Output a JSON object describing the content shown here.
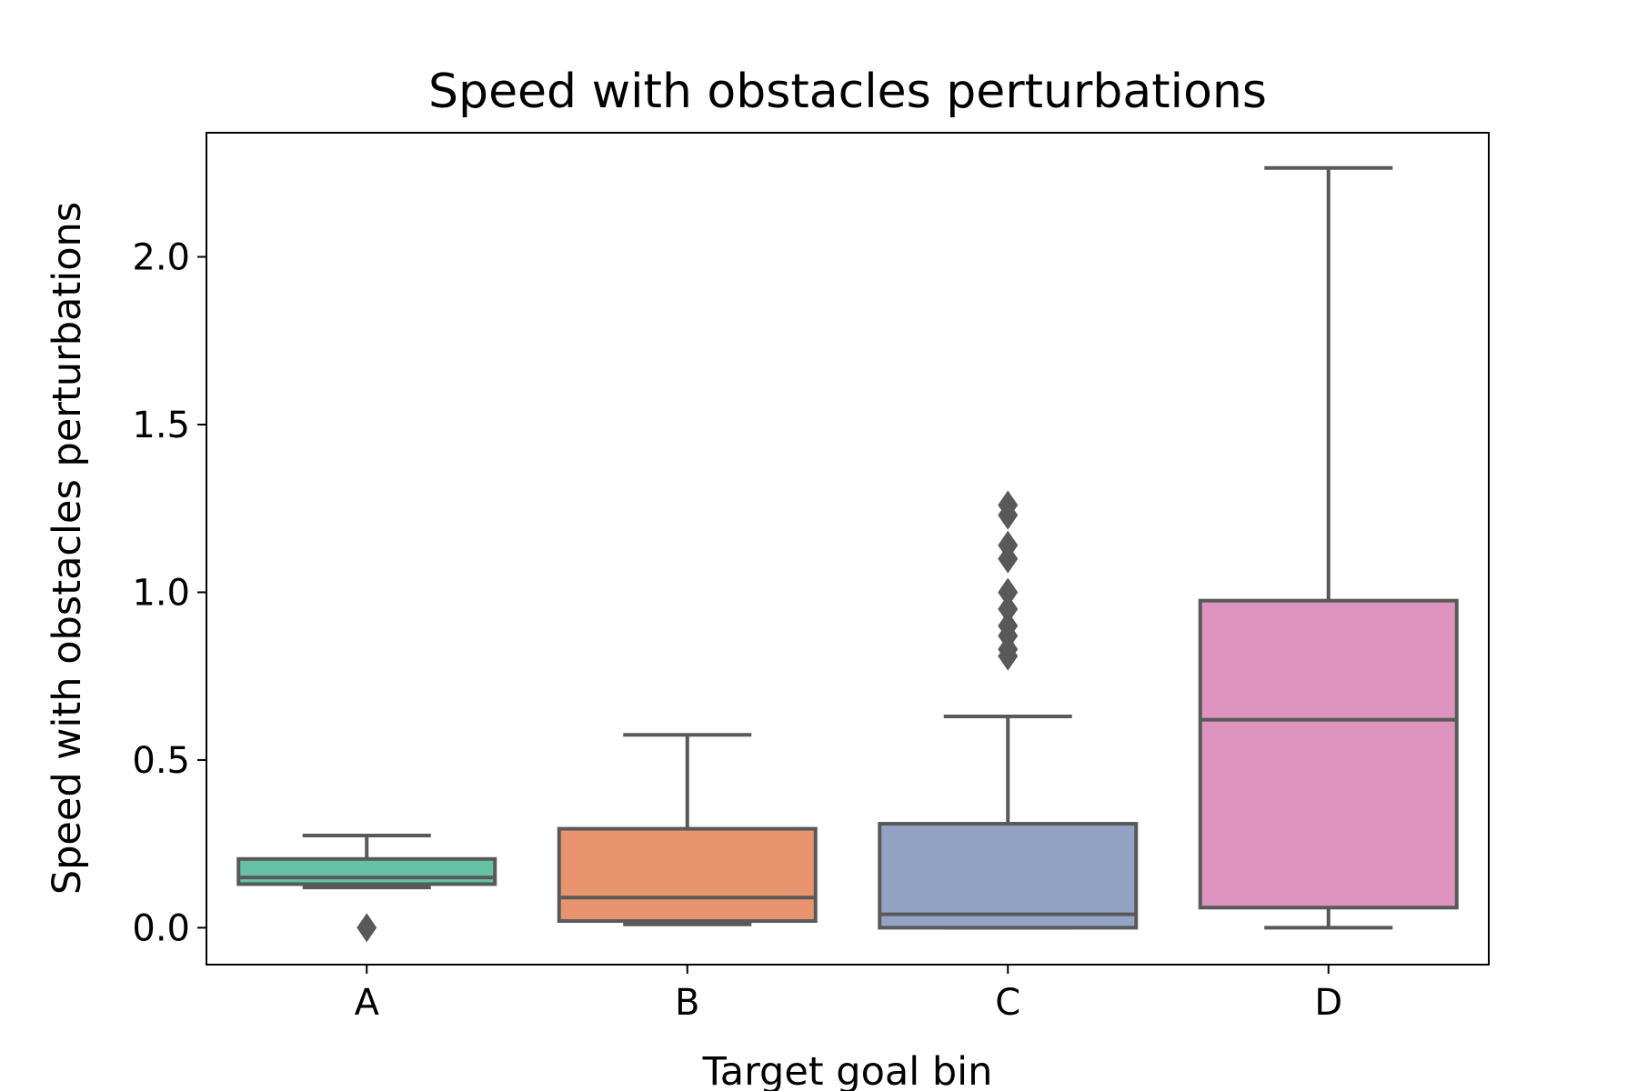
{
  "chart_data": {
    "type": "box",
    "title": "Speed with obstacles perturbations",
    "xlabel": "Target goal bin",
    "ylabel": "Speed with obstacles perturbations",
    "ylim": [
      -0.11,
      2.37
    ],
    "yticks": [
      0.0,
      0.5,
      1.0,
      1.5,
      2.0
    ],
    "ytick_labels": [
      "0.0",
      "0.5",
      "1.0",
      "1.5",
      "2.0"
    ],
    "categories": [
      "A",
      "B",
      "C",
      "D"
    ],
    "grid": false,
    "legend": "none",
    "boxes": [
      {
        "category": "A",
        "color": "#66c2a5",
        "whisker_low": 0.12,
        "q1": 0.13,
        "median": 0.15,
        "q3": 0.205,
        "whisker_high": 0.275,
        "outliers": [
          0.0
        ]
      },
      {
        "category": "B",
        "color": "#e8956f",
        "whisker_low": 0.01,
        "q1": 0.02,
        "median": 0.09,
        "q3": 0.295,
        "whisker_high": 0.575,
        "outliers": []
      },
      {
        "category": "C",
        "color": "#93a3c4",
        "whisker_low": 0.0,
        "q1": 0.0,
        "median": 0.04,
        "q3": 0.31,
        "whisker_high": 0.63,
        "outliers": [
          0.81,
          0.83,
          0.87,
          0.9,
          0.95,
          1.0,
          1.1,
          1.14,
          1.23,
          1.26
        ]
      },
      {
        "category": "D",
        "color": "#dd95bf",
        "whisker_low": 0.0,
        "q1": 0.06,
        "median": 0.62,
        "q3": 0.975,
        "whisker_high": 2.265,
        "outliers": []
      }
    ],
    "line_color": "#595959"
  }
}
